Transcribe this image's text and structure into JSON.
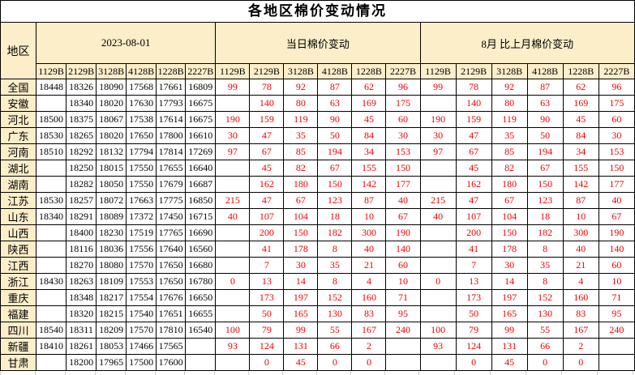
{
  "title": "各地区棉价变动情况",
  "colors": {
    "header_bg": "#fdeeca",
    "change_text": "#f00000",
    "border": "#000000",
    "gridline_stub": "#cfcfcf"
  },
  "table": {
    "region_header": "地区",
    "sections": [
      {
        "label": "2023-08-01",
        "codes": [
          "1129B",
          "2129B",
          "3128B",
          "4128B",
          "1228B",
          "2227B"
        ]
      },
      {
        "label": "当日棉价变动",
        "codes": [
          "1129B",
          "2129B",
          "3128B",
          "4128B",
          "1228B",
          "2227B"
        ]
      },
      {
        "label": "8月 比上月棉价变动",
        "codes": [
          "1129B",
          "2129B",
          "3128B",
          "4128B",
          "1228B",
          "2227B"
        ]
      }
    ],
    "rows": [
      {
        "region": "全国",
        "price": [
          "18448",
          "18326",
          "18090",
          "17568",
          "17661",
          "16809"
        ],
        "daily": [
          "99",
          "78",
          "92",
          "87",
          "62",
          "96"
        ],
        "monthly": [
          "99",
          "78",
          "92",
          "87",
          "62",
          "96"
        ]
      },
      {
        "region": "安徽",
        "price": [
          "",
          "18340",
          "18020",
          "17630",
          "17793",
          "16675"
        ],
        "daily": [
          "",
          "140",
          "80",
          "63",
          "169",
          "175"
        ],
        "monthly": [
          "",
          "140",
          "80",
          "63",
          "169",
          "175"
        ]
      },
      {
        "region": "河北",
        "price": [
          "18500",
          "18375",
          "18067",
          "17538",
          "17614",
          "16675"
        ],
        "daily": [
          "190",
          "159",
          "119",
          "90",
          "45",
          "60"
        ],
        "monthly": [
          "190",
          "159",
          "119",
          "90",
          "45",
          "60"
        ]
      },
      {
        "region": "广东",
        "price": [
          "18530",
          "18265",
          "18020",
          "17650",
          "17800",
          "16610"
        ],
        "daily": [
          "30",
          "47",
          "35",
          "50",
          "84",
          "30"
        ],
        "monthly": [
          "30",
          "47",
          "35",
          "50",
          "84",
          "30"
        ]
      },
      {
        "region": "河南",
        "price": [
          "18510",
          "18292",
          "18132",
          "17794",
          "17814",
          "17269"
        ],
        "daily": [
          "97",
          "67",
          "85",
          "194",
          "34",
          "153"
        ],
        "monthly": [
          "97",
          "67",
          "85",
          "194",
          "34",
          "153"
        ]
      },
      {
        "region": "湖北",
        "price": [
          "",
          "18250",
          "18015",
          "17550",
          "17655",
          "16640"
        ],
        "daily": [
          "",
          "45",
          "82",
          "67",
          "155",
          "150"
        ],
        "monthly": [
          "",
          "45",
          "82",
          "67",
          "155",
          "150"
        ]
      },
      {
        "region": "湖南",
        "price": [
          "",
          "18282",
          "18050",
          "17550",
          "17679",
          "16687"
        ],
        "daily": [
          "",
          "162",
          "180",
          "150",
          "142",
          "177"
        ],
        "monthly": [
          "",
          "162",
          "180",
          "150",
          "142",
          "177"
        ]
      },
      {
        "region": "江苏",
        "price": [
          "18530",
          "18257",
          "18072",
          "17663",
          "17775",
          "16850"
        ],
        "daily": [
          "215",
          "47",
          "67",
          "123",
          "87",
          "40"
        ],
        "monthly": [
          "215",
          "47",
          "67",
          "123",
          "87",
          "40"
        ]
      },
      {
        "region": "山东",
        "price": [
          "18340",
          "18291",
          "18089",
          "17372",
          "17450",
          "16715"
        ],
        "daily": [
          "40",
          "107",
          "104",
          "18",
          "10",
          "67"
        ],
        "monthly": [
          "40",
          "107",
          "104",
          "18",
          "10",
          "67"
        ]
      },
      {
        "region": "山西",
        "price": [
          "",
          "18400",
          "18230",
          "17519",
          "17765",
          "16690"
        ],
        "daily": [
          "",
          "200",
          "150",
          "182",
          "300",
          "190"
        ],
        "monthly": [
          "",
          "200",
          "150",
          "182",
          "300",
          "190"
        ]
      },
      {
        "region": "陕西",
        "price": [
          "",
          "18116",
          "18036",
          "17556",
          "17640",
          "16560"
        ],
        "daily": [
          "",
          "41",
          "178",
          "8",
          "40",
          "140"
        ],
        "monthly": [
          "",
          "41",
          "178",
          "8",
          "40",
          "140"
        ]
      },
      {
        "region": "江西",
        "price": [
          "",
          "18270",
          "18080",
          "17570",
          "17650",
          "16680"
        ],
        "daily": [
          "",
          "7",
          "30",
          "35",
          "21",
          "60"
        ],
        "monthly": [
          "",
          "7",
          "30",
          "35",
          "21",
          "60"
        ]
      },
      {
        "region": "浙江",
        "price": [
          "18430",
          "18263",
          "18109",
          "17553",
          "17650",
          "16780"
        ],
        "daily": [
          "0",
          "13",
          "14",
          "8",
          "4",
          "10"
        ],
        "monthly": [
          "0",
          "13",
          "14",
          "8",
          "4",
          "10"
        ]
      },
      {
        "region": "重庆",
        "price": [
          "",
          "18348",
          "18217",
          "17554",
          "17676",
          "16650"
        ],
        "daily": [
          "",
          "173",
          "197",
          "152",
          "160",
          "71"
        ],
        "monthly": [
          "",
          "173",
          "197",
          "152",
          "160",
          "71"
        ]
      },
      {
        "region": "福建",
        "price": [
          "",
          "18320",
          "18215",
          "17540",
          "17651",
          "16655"
        ],
        "daily": [
          "",
          "50",
          "165",
          "130",
          "83",
          "95"
        ],
        "monthly": [
          "",
          "50",
          "165",
          "130",
          "83",
          "95"
        ]
      },
      {
        "region": "四川",
        "price": [
          "18540",
          "18311",
          "18209",
          "17570",
          "17810",
          "16540"
        ],
        "daily": [
          "100",
          "79",
          "99",
          "55",
          "167",
          "240"
        ],
        "monthly": [
          "100",
          "79",
          "99",
          "55",
          "167",
          "240"
        ]
      },
      {
        "region": "新疆",
        "price": [
          "18410",
          "18261",
          "18053",
          "17466",
          "17565",
          ""
        ],
        "daily": [
          "93",
          "124",
          "131",
          "66",
          "2",
          ""
        ],
        "monthly": [
          "93",
          "124",
          "131",
          "66",
          "2",
          ""
        ]
      },
      {
        "region": "甘肃",
        "price": [
          "",
          "18200",
          "17965",
          "17500",
          "17600",
          ""
        ],
        "daily": [
          "",
          "0",
          "45",
          "0",
          "0",
          ""
        ],
        "monthly": [
          "",
          "0",
          "45",
          "0",
          "0",
          ""
        ]
      }
    ]
  }
}
